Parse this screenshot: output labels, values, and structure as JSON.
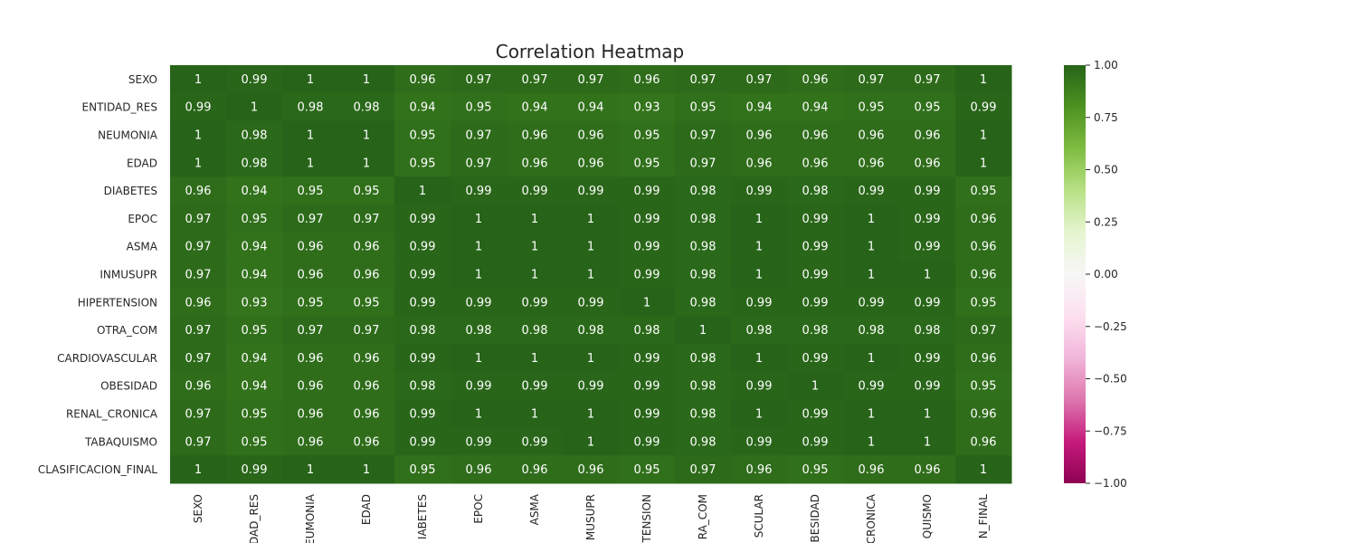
{
  "chart_data": {
    "type": "heatmap",
    "title": "Correlation Heatmap",
    "labels": [
      "SEXO",
      "ENTIDAD_RES",
      "NEUMONIA",
      "EDAD",
      "DIABETES",
      "EPOC",
      "ASMA",
      "INMUSUPR",
      "HIPERTENSION",
      "OTRA_COM",
      "CARDIOVASCULAR",
      "OBESIDAD",
      "RENAL_CRONICA",
      "TABAQUISMO",
      "CLASIFICACION_FINAL"
    ],
    "values": [
      [
        1,
        0.99,
        1,
        1,
        0.96,
        0.97,
        0.97,
        0.97,
        0.96,
        0.97,
        0.97,
        0.96,
        0.97,
        0.97,
        1
      ],
      [
        0.99,
        1,
        0.98,
        0.98,
        0.94,
        0.95,
        0.94,
        0.94,
        0.93,
        0.95,
        0.94,
        0.94,
        0.95,
        0.95,
        0.99
      ],
      [
        1,
        0.98,
        1,
        1,
        0.95,
        0.97,
        0.96,
        0.96,
        0.95,
        0.97,
        0.96,
        0.96,
        0.96,
        0.96,
        1
      ],
      [
        1,
        0.98,
        1,
        1,
        0.95,
        0.97,
        0.96,
        0.96,
        0.95,
        0.97,
        0.96,
        0.96,
        0.96,
        0.96,
        1
      ],
      [
        0.96,
        0.94,
        0.95,
        0.95,
        1,
        0.99,
        0.99,
        0.99,
        0.99,
        0.98,
        0.99,
        0.98,
        0.99,
        0.99,
        0.95
      ],
      [
        0.97,
        0.95,
        0.97,
        0.97,
        0.99,
        1,
        1,
        1,
        0.99,
        0.98,
        1,
        0.99,
        1,
        0.99,
        0.96
      ],
      [
        0.97,
        0.94,
        0.96,
        0.96,
        0.99,
        1,
        1,
        1,
        0.99,
        0.98,
        1,
        0.99,
        1,
        0.99,
        0.96
      ],
      [
        0.97,
        0.94,
        0.96,
        0.96,
        0.99,
        1,
        1,
        1,
        0.99,
        0.98,
        1,
        0.99,
        1,
        1,
        0.96
      ],
      [
        0.96,
        0.93,
        0.95,
        0.95,
        0.99,
        0.99,
        0.99,
        0.99,
        1,
        0.98,
        0.99,
        0.99,
        0.99,
        0.99,
        0.95
      ],
      [
        0.97,
        0.95,
        0.97,
        0.97,
        0.98,
        0.98,
        0.98,
        0.98,
        0.98,
        1,
        0.98,
        0.98,
        0.98,
        0.98,
        0.97
      ],
      [
        0.97,
        0.94,
        0.96,
        0.96,
        0.99,
        1,
        1,
        1,
        0.99,
        0.98,
        1,
        0.99,
        1,
        0.99,
        0.96
      ],
      [
        0.96,
        0.94,
        0.96,
        0.96,
        0.98,
        0.99,
        0.99,
        0.99,
        0.99,
        0.98,
        0.99,
        1,
        0.99,
        0.99,
        0.95
      ],
      [
        0.97,
        0.95,
        0.96,
        0.96,
        0.99,
        1,
        1,
        1,
        0.99,
        0.98,
        1,
        0.99,
        1,
        1,
        0.96
      ],
      [
        0.97,
        0.95,
        0.96,
        0.96,
        0.99,
        0.99,
        0.99,
        1,
        0.99,
        0.98,
        0.99,
        0.99,
        1,
        1,
        0.96
      ],
      [
        1,
        0.99,
        1,
        1,
        0.95,
        0.96,
        0.96,
        0.96,
        0.95,
        0.97,
        0.96,
        0.95,
        0.96,
        0.96,
        1
      ]
    ],
    "x_tick_labels_visible": [
      "SEXO",
      "DAD_RES",
      "EUMONIA",
      "EDAD",
      "IABETES",
      "EPOC",
      "ASMA",
      "MUSUPR",
      "TENSION",
      "RA_COM",
      "SCULAR",
      "BESIDAD",
      "CRONICA",
      "QUISMO",
      "N_FINAL"
    ],
    "colormap": "PiYG",
    "vmin": -1,
    "vmax": 1,
    "colorbar_ticks": [
      1.0,
      0.75,
      0.5,
      0.25,
      0.0,
      -0.25,
      -0.5,
      -0.75,
      -1.0
    ],
    "colorbar_tick_labels": [
      "1.00",
      "0.75",
      "0.50",
      "0.25",
      "0.00",
      "−0.25",
      "−0.50",
      "−0.75",
      "−1.00"
    ],
    "colors": {
      "cell_text": "#ffffff",
      "tick_text": "#262626",
      "cmap_stops": [
        "#8e0152",
        "#c51b7d",
        "#de77ae",
        "#f1b6da",
        "#fde0ef",
        "#f7f7f7",
        "#e6f5d0",
        "#b8e186",
        "#7fbc41",
        "#4d9221",
        "#276419"
      ]
    }
  }
}
